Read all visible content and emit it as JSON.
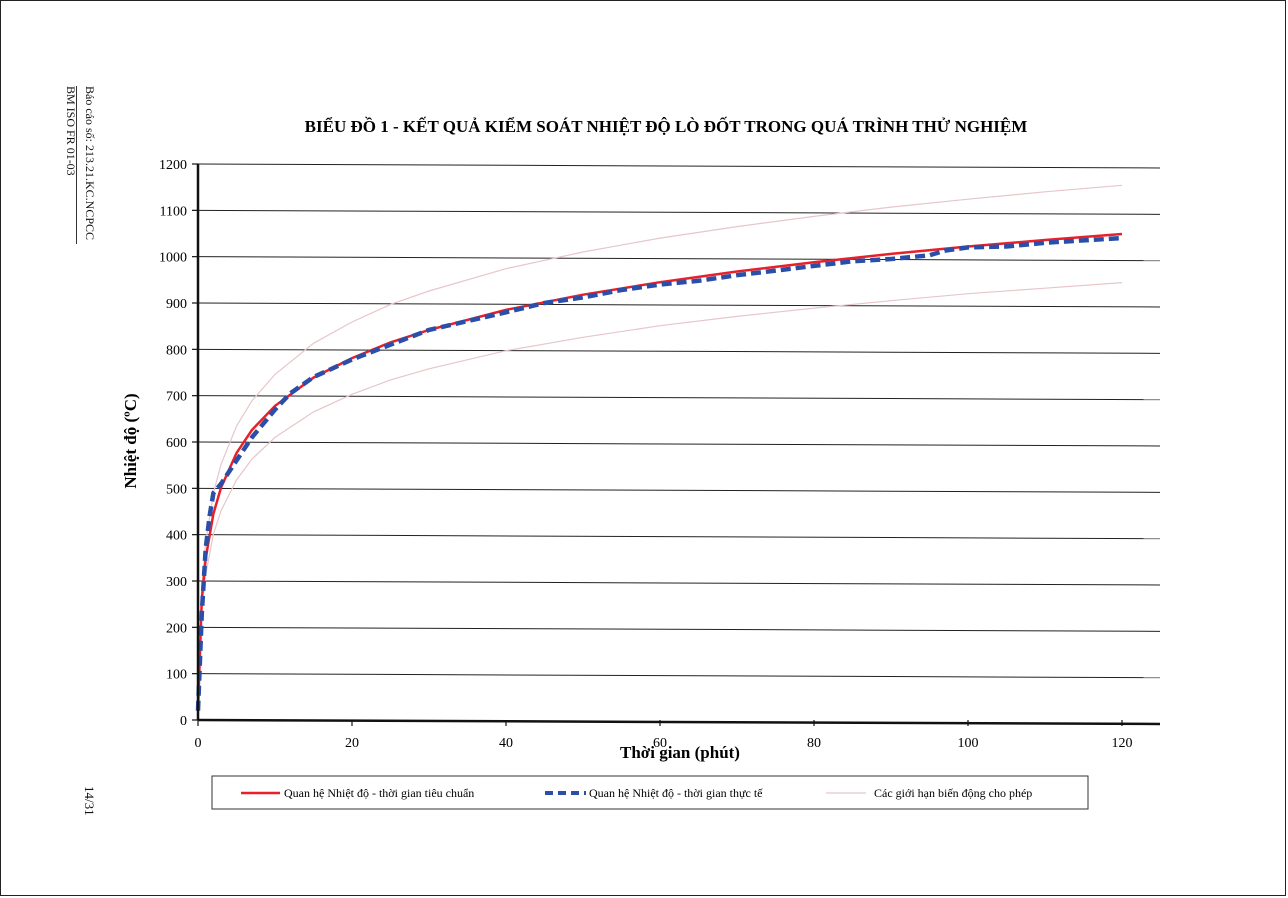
{
  "side": {
    "report_no": "Báo cáo số: 213.21.KC.NCPCC",
    "form_code": "BM ISO FR 01-03",
    "page_number": "14/31"
  },
  "chart_data": {
    "type": "line",
    "title": "BIỂU ĐỒ 1 - KẾT QUẢ KIỂM SOÁT NHIỆT ĐỘ LÒ ĐỐT TRONG QUÁ TRÌNH THỬ NGHIỆM",
    "xlabel": "Thời gian (phút)",
    "ylabel": "Nhiệt độ (ºC)",
    "xlim": [
      0,
      120
    ],
    "ylim": [
      0,
      1200
    ],
    "xticks": [
      0,
      20,
      40,
      60,
      80,
      100,
      120
    ],
    "yticks": [
      0,
      100,
      200,
      300,
      400,
      500,
      600,
      700,
      800,
      900,
      1000,
      1100,
      1200
    ],
    "grid": true,
    "legend_position": "bottom",
    "series": [
      {
        "name": "Quan hệ Nhiệt độ - thời gian tiêu chuẩn",
        "color": "#e8202a",
        "style": "solid",
        "x": [
          0,
          0.5,
          1,
          2,
          3,
          5,
          7,
          10,
          15,
          20,
          25,
          30,
          40,
          50,
          60,
          70,
          80,
          90,
          100,
          110,
          120
        ],
        "values": [
          20,
          261,
          349,
          445,
          502,
          576,
          626,
          678,
          739,
          781,
          815,
          842,
          885,
          918,
          945,
          968,
          988,
          1006,
          1022,
          1036,
          1049
        ]
      },
      {
        "name": "Quan hệ Nhiệt độ - thời gian thực tế",
        "color": "#2a4fa8",
        "style": "dashed",
        "x": [
          0,
          0.5,
          1,
          1.5,
          2,
          3,
          5,
          7,
          10,
          12,
          15,
          20,
          25,
          30,
          40,
          45,
          50,
          55,
          60,
          65,
          70,
          75,
          80,
          85,
          90,
          95,
          97,
          100,
          105,
          110,
          115,
          120
        ],
        "values": [
          20,
          230,
          370,
          440,
          490,
          510,
          560,
          610,
          670,
          705,
          740,
          778,
          810,
          842,
          880,
          900,
          912,
          928,
          940,
          948,
          960,
          970,
          980,
          990,
          995,
          1003,
          1013,
          1020,
          1022,
          1030,
          1035,
          1040
        ]
      },
      {
        "name": "Các giới hạn biến động cho phép",
        "color": "#e7c6c9",
        "style": "thin",
        "x": [
          0,
          0.5,
          1,
          2,
          3,
          5,
          7,
          10,
          15,
          20,
          25,
          30,
          40,
          50,
          60,
          70,
          80,
          90,
          100,
          110,
          120
        ],
        "values": [
          22,
          287,
          384,
          490,
          552,
          634,
          689,
          746,
          813,
          859,
          897,
          926,
          974,
          1010,
          1040,
          1065,
          1087,
          1107,
          1124,
          1140,
          1154
        ]
      },
      {
        "name": "",
        "color": "#e7c6c9",
        "style": "thin",
        "x": [
          0,
          0.5,
          1,
          2,
          3,
          5,
          7,
          10,
          15,
          20,
          25,
          30,
          40,
          50,
          60,
          70,
          80,
          90,
          100,
          110,
          120
        ],
        "values": [
          18,
          235,
          314,
          401,
          452,
          518,
          563,
          610,
          665,
          703,
          734,
          758,
          797,
          826,
          851,
          871,
          889,
          905,
          920,
          932,
          944
        ]
      }
    ]
  }
}
